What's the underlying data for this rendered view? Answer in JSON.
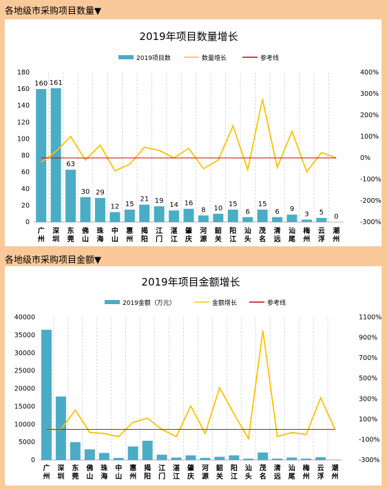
{
  "header_top": "各地级市采购项目数量▼",
  "header_bottom": "各地级市采购项目金额▼",
  "chart_data": [
    {
      "type": "bar",
      "title": "2019年项目数量增长",
      "categories": [
        "广州",
        "深圳",
        "东莞",
        "佛山",
        "珠海",
        "中山",
        "惠州",
        "揭阳",
        "江门",
        "湛江",
        "肇庆",
        "河源",
        "韶关",
        "阳江",
        "汕头",
        "茂名",
        "清远",
        "汕尾",
        "梅州",
        "云浮",
        "潮州"
      ],
      "series": [
        {
          "name": "2019项目数",
          "type": "bar",
          "axis": "left",
          "color": "#4bacc6",
          "values": [
            160,
            161,
            63,
            30,
            29,
            12,
            15,
            21,
            19,
            14,
            16,
            8,
            10,
            15,
            6,
            15,
            6,
            9,
            3,
            5,
            0
          ],
          "labels": [
            "160",
            "161",
            "63",
            "30",
            "29",
            "12",
            "15",
            "21",
            "19",
            "14",
            "16",
            "8",
            "10",
            "15",
            "6",
            "15",
            "6",
            "9",
            "3",
            "5",
            "0"
          ]
        },
        {
          "name": "数量增长",
          "type": "line",
          "axis": "right",
          "color": "#ffc000",
          "values": [
            -20,
            30,
            100,
            -10,
            60,
            -60,
            -30,
            50,
            35,
            0,
            45,
            -50,
            -10,
            150,
            -55,
            275,
            -45,
            125,
            -65,
            25,
            0
          ]
        },
        {
          "name": "参考线",
          "type": "line",
          "axis": "right",
          "color": "#c00000",
          "values": [
            0,
            0,
            0,
            0,
            0,
            0,
            0,
            0,
            0,
            0,
            0,
            0,
            0,
            0,
            0,
            0,
            0,
            0,
            0,
            0,
            0
          ]
        }
      ],
      "ylim": [
        0,
        180
      ],
      "yticks": [
        0,
        20,
        40,
        60,
        80,
        100,
        120,
        140,
        160,
        180
      ],
      "ylim_right": [
        -300,
        400
      ],
      "yticks_right": [
        "-300%",
        "-200%",
        "-100%",
        "0%",
        "100%",
        "200%",
        "300%",
        "400%"
      ],
      "yticks_right_values": [
        -300,
        -200,
        -100,
        0,
        100,
        200,
        300,
        400
      ],
      "legend": "top"
    },
    {
      "type": "bar",
      "title": "2019年项目金额增长",
      "categories": [
        "广州",
        "深圳",
        "东莞",
        "佛山",
        "珠海",
        "中山",
        "惠州",
        "揭阳",
        "江门",
        "湛江",
        "肇庆",
        "河源",
        "韶关",
        "阳江",
        "汕头",
        "茂名",
        "清远",
        "汕尾",
        "梅州",
        "云浮",
        "潮州"
      ],
      "series": [
        {
          "name": "2019金额（万元）",
          "type": "bar",
          "axis": "left",
          "color": "#4bacc6",
          "values": [
            36500,
            17800,
            5000,
            3000,
            2000,
            600,
            3800,
            5400,
            1500,
            700,
            1300,
            600,
            900,
            1300,
            400,
            2100,
            400,
            700,
            400,
            800,
            100
          ]
        },
        {
          "name": "金额增长",
          "type": "line",
          "axis": "right",
          "color": "#ffc000",
          "values": [
            0,
            0,
            190,
            -30,
            -40,
            -70,
            70,
            110,
            0,
            -70,
            230,
            -40,
            410,
            150,
            -90,
            970,
            -70,
            -30,
            -50,
            310,
            0
          ]
        },
        {
          "name": "参考线",
          "type": "line",
          "axis": "right",
          "color": "#c00000",
          "values": [
            0,
            0,
            0,
            0,
            0,
            0,
            0,
            0,
            0,
            0,
            0,
            0,
            0,
            0,
            0,
            0,
            0,
            0,
            0,
            0,
            0
          ]
        }
      ],
      "ylim": [
        0,
        40000
      ],
      "yticks": [
        0,
        5000,
        10000,
        15000,
        20000,
        25000,
        30000,
        35000,
        40000
      ],
      "ylim_right": [
        -300,
        1100
      ],
      "yticks_right": [
        "-300%",
        "-100%",
        "100%",
        "300%",
        "500%",
        "700%",
        "900%",
        "1100%"
      ],
      "yticks_right_values": [
        -300,
        -100,
        100,
        300,
        500,
        700,
        900,
        1100
      ],
      "legend": "top"
    }
  ]
}
